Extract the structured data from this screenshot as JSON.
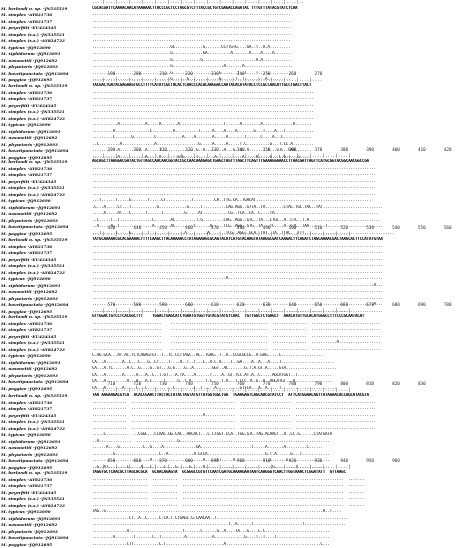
{
  "figure": {
    "taxa": [
      "M. berlandi n. sp. -JN535519",
      "M. simplex -AY821736",
      "M. simplex -AY821737",
      "M. peyerfitti -EU424345",
      "M. simplex (s.s.) -JN535521",
      "M. simplex (s.s.) -AY824723",
      "M. typicus -JQ912690",
      "M. xiphidorum -JQ912691",
      "M. nasonettii -JQ912692",
      "M. physetaris -JQ912693",
      "M. bovetipunctata -JQ912694",
      "M. paggiae -JQ912695"
    ],
    "blocks": [
      {
        "ruler_numbers": "                                                                                   ",
        "ruler_ticks": "....|....|....|....|....|....|....|....|....|....|....|....|....|....|....|....|..",
        "rows": [
          "CGCACGATTCAAAACAACATAAAAACTTACCCGCTCCTAGCGTCTTTACCGCTGTCGAGACCAGATAC TTTGTTTATACGTATCTCAA",
          "......................................................................................",
          "......................................................................................",
          "......................................................................................",
          "......................................................................................",
          "......................................................................................",
          "..................................GC............G.......CCTTGTG....GA..T..A.A.........",
          "..................................G.............GA..........A.......A....A....A.......",
          "..................................G............G.......................A.A............",
          "..................................G......................A.......A.....................",
          "..................................G....................G.......T..T....T...............",
          "..................................G......G.............G......T..T.........A.........."
        ]
      },
      {
        "ruler_numbers": "      190       200       210       220       230       240       250       260       270",
        "ruler_ticks": "....|....|....|....|....|....|....|....|....|....|....|....|....|....|....|....|....|....",
        "rows": [
          "TACGACTGATACGAGAAGTGCCTTTTCATATCGCTACACTCAACCCACACAAGGACCAATACACATATACCTCCGCCAACATTGCCTGACTTACT",
          "................................................................................................",
          "................................................................................................",
          "................................................................................................",
          "................................................................................................",
          "................................................................................................",
          "...........A...........A.....A.......A...................T......A........A.............A.......",
          ".........A...............C.........A..........T.....A....A....A.......G...T....A...T............",
          ".........C.......G.........C...........A....A.......A.....A.......T......C....A...C............",
          "..C.........A..............A..................G.....A.....A.....T.C..........G...T.CC.A.........",
          "...........A...........A.....T...............G..A........A...G..G..A........T...GTC..CAA.......",
          "...........A...........A.....A.......GTG.....T.......A...........A.....A.....G...C.G.T...G....."
        ]
      },
      {
        "ruler_numbers": "      290       300       310       320       330       340       350       360       370       380       390       400       410       420",
        "ruler_ticks": "....|....|....|....|....|....|....|....|....|....|....|....|....|....|....|....|....|....|....|....|",
        "rows": [
          "AGCAGCTTAAGGACGATACTGTTAGCCAACAACGGTACCGCCAACAAAGAGCTGAGCTAGTTTAGCTTCAGTTTGAAAGGAAACCTTAACGATTAGTTCATGCGGTACGGCAACGGCCGA",
          "...........................................................................................................................",
          "...........................................................................................................................",
          "...........................................................................................................................",
          "...........................................................................................................................",
          "...........................................................................................................................",
          "...T......T.....G.......T.....CT...........T.........CA..TTG.CA..TGACAT..................................................",
          ".C...A.....CT...T...........G............G.....T..........CAG.AGG..GTTA..TA........CTAC.TGC.TAC..TAT..........................",
          ".....A.....AT...C......T......T.........G.....AT...........CG..TCA..CA..C....TA.............................................",
          "..C.....T..T..............C.......AC.........T.G.........CAG..AGG..GTC..TA...CTGC..A..CTC..T.A...............................",
          "..A.....A..T..............A.......AC........C......A.....TCG..AGG..GTG..TA...TC....A..CTC..TAA.......T........................",
          "...T......T.....G.......T...............A.........A.......TCG..AGG..GCA..TAT..TA..TTAC...TTT......................................."
        ]
      },
      {
        "ruler_numbers": "      430       440       450       460       470       480       490       500       510       520       530       540       550       560",
        "ruler_ticks": "....|....|....|....|....|....|....|....|....|....|....|....|....|....|....|....|....|....|....|....|",
        "rows": [
          "TATGCAAAAACGCACGAAAACTTTTCAAGCTTACAAAAACCTATAGAAAGCGCAGTACATCATGTACAAGTATAAGGCGATCAAGACTTCAGATCTAGCAAAACGACTAAGCACTTCCATATGTAA",
          "..............................................................................................................................",
          "..............................................................................................................................",
          "..............................................................................................................................",
          "..............................................................................................................................",
          "..............................................................................................................................",
          "..........................................................A...................................................................",
          "..........................................................................................................................A...",
          "..............................................................................................................................",
          "..............................................................................................................................",
          "..........................................................................................................................A...",
          ".............................................................................................................................."
        ]
      },
      {
        "ruler_numbers": "      570       580       590       600       610       620       630       640       650       660       670       680       690       700",
        "ruler_ticks": "....|....|....|....|....|....|....|....|....|....|....|....|....|....|....|....|....|....|....|....|",
        "rows": [
          "GTTGGACTGTCCTCACGGCTTT    TGGACTGAGCATCTGAATGTGGTTGTACGTATGTCAAC  TGTTGGCTCTGAGCT  AAACATGTTGCACATGGGCCTTTCCCGCAATACAT",
          "..............................    ..........................................  ...............  ..............................",
          "..............................    ..........................................  ...............  ..............................",
          "..............................    ..........................................  ...............  ..............................",
          "..............................    ..........................................  ...............  ...........A..................",
          "..............................    ..........................................  ...............  ..............................",
          "C.AG.GCA...AT.AC.TCTCAGAGTGT..T..TC.CCTTAGC..AC..TGAG..T..A..CCGCGCCG..A.GAG.....C..................",
          "CA...A.......A..C...C...G..CT....T....A..T..T...C..A.C.A....T..GA....A..A...A....T.......................",
          "CA...A.TC......A.C..G....G..GT...G.G....G..A........GGT..AC.......G.T.A.GT.A.....GTA......................",
          "CA...A.......A.....A...A..C..T.GT...A.TA....A......T....A..GT.TCC.AT.A..C.....AGCATGGT..T...............",
          "CA...A.........A...A...A.C.....T.....G..T.A......T.C....T.A...T.CCC.TC.G..A..AGCATGT...A................",
          "CA...A.......A.....C...C...........C........T..T.....A..........GTTCA...A..A.....T........................"
        ]
      },
      {
        "ruler_numbers": "      710       720       730       740       750       760       770       780       790       800       810       820       830",
        "ruler_ticks": "....|....|....|....|....|....|....|....|....|....|....|....|....|....|....|....|....|....|....|....|",
        "rows": [
          "TAA AAGAAGACGTCA  ACACCGAACTTACTACTATACTAGTATGTTATGGTGGCTGA  TGAAGAGTCAGCAACGTATCCT  ATTCATGGAACAGTTATAGAACACCAGCATACGTA",
          "...............  .............................................  ......................  ...................................",
          "...............  .............................................  ......................  ...................................",
          "...............  ...............................A.............  ......................  ...................................",
          "...............  .............................................  ......................  ...................................",
          "...............  .............................................  ......................  ...................................",
          ".....C..........  ..CGGC...CCAAC.GG.CAC..AACACT...C.CTGGT.CCA..TGG.GTC.TAG.ACAACT..A..CC.G......CTATGATA",
          "..A..............  ..................G.................................................................",
          "......A....G..........C..G....A..............GA......................T.....A.......A.........C......",
          ".........G...................C..A...........A.GTCA.........................G.T.A......G...T............",
          ".........................A......................A.....CT.....A...............C......G..................",
          "..G..AT........C.....A...C.....C....G.....G.....A.............................G.........T.............."
        ]
      },
      {
        "ruler_numbers": "      850       860       870       880       890       900       910       920       930       940       950       960",
        "ruler_ticks": "....|....|....|....|....|....|....|....|....|....|....|....|....|....|....|....|....|....|....|....|",
        "rows": [
          "TAGGTGCTCAACGCTTAGCACGCA  GCAACAGAGTA  GCGGGCCGTGTTCAATCGATGCAAAAGAATAATCAAGGGTCAACTTGGTAAACTCGGATATT  GTTAAGC",
          "........................  ...........  ......................................................................  .......",
          "........................  ...........  ......................................................................  .......",
          "........................  ...........  ......................................................................  .......",
          "........................  ...........  ......................................................................  .......",
          "........................  ...........  ......................................................................  .......",
          "TAG..G..............................................................................................A..T....",
          "................CT..A..C.....C.CA.T.CTGAGC.G.CAACAA..T.........................................................",
          "...........................................................T..A......T.....................T..................",
          "...............A.......................T.......C......G..A....TA...G....C.C............................",
          ".........A........T.......C..T..........A...........A.............G....T..T....T.......................",
          "...............CTT...........C.T.........................A.........................................C..."
        ]
      }
    ]
  }
}
